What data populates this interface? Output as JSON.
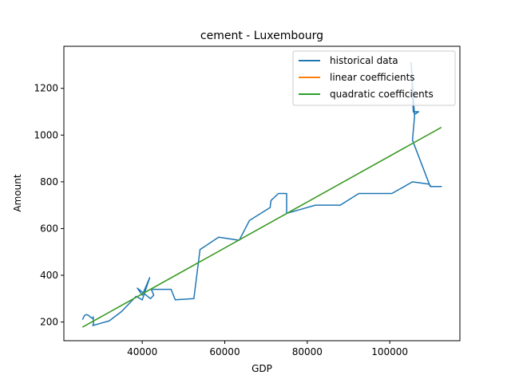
{
  "chart_data": {
    "type": "line",
    "title": "cement - Luxembourg",
    "xlabel": "GDP",
    "ylabel": "Amount",
    "xlim": [
      21000,
      117000
    ],
    "ylim": [
      120,
      1380
    ],
    "xticks": [
      40000,
      60000,
      80000,
      100000
    ],
    "xtick_labels": [
      "40000",
      "60000",
      "80000",
      "100000"
    ],
    "yticks": [
      200,
      400,
      600,
      800,
      1000,
      1200
    ],
    "ytick_labels": [
      "200",
      "400",
      "600",
      "800",
      "1000",
      "1200"
    ],
    "grid": false,
    "legend_position": "top-right",
    "series": [
      {
        "name": "historical data",
        "color": "#1f77b4",
        "x": [
          25500,
          26000,
          26500,
          27000,
          27500,
          28000,
          28100,
          28200,
          28000,
          32000,
          35000,
          38500,
          40000,
          41800,
          40000,
          38800,
          42000,
          42800,
          42200,
          47000,
          48000,
          52500,
          54000,
          58500,
          63500,
          66000,
          71000,
          71200,
          73000,
          75000,
          75000,
          82000,
          88000,
          92500,
          100500,
          105500,
          109500,
          110000,
          112500,
          109800,
          105500,
          106000,
          105200,
          105700,
          106200,
          107000,
          106000
        ],
        "y": [
          210,
          228,
          232,
          228,
          220,
          215,
          222,
          195,
          185,
          205,
          245,
          310,
          295,
          390,
          315,
          345,
          300,
          315,
          340,
          340,
          295,
          300,
          510,
          563,
          550,
          635,
          690,
          720,
          750,
          750,
          665,
          700,
          700,
          750,
          750,
          800,
          790,
          780,
          780,
          780,
          978,
          1080,
          1310,
          1100,
          1090,
          1100,
          1100
        ]
      },
      {
        "name": "linear coefficients",
        "color": "#ff7f0e",
        "x": [
          25500,
          112500
        ],
        "y": [
          178,
          1033
        ]
      },
      {
        "name": "quadratic coefficients",
        "color": "#2ca02c",
        "x": [
          25500,
          112500
        ],
        "y": [
          178,
          1033
        ]
      }
    ]
  }
}
